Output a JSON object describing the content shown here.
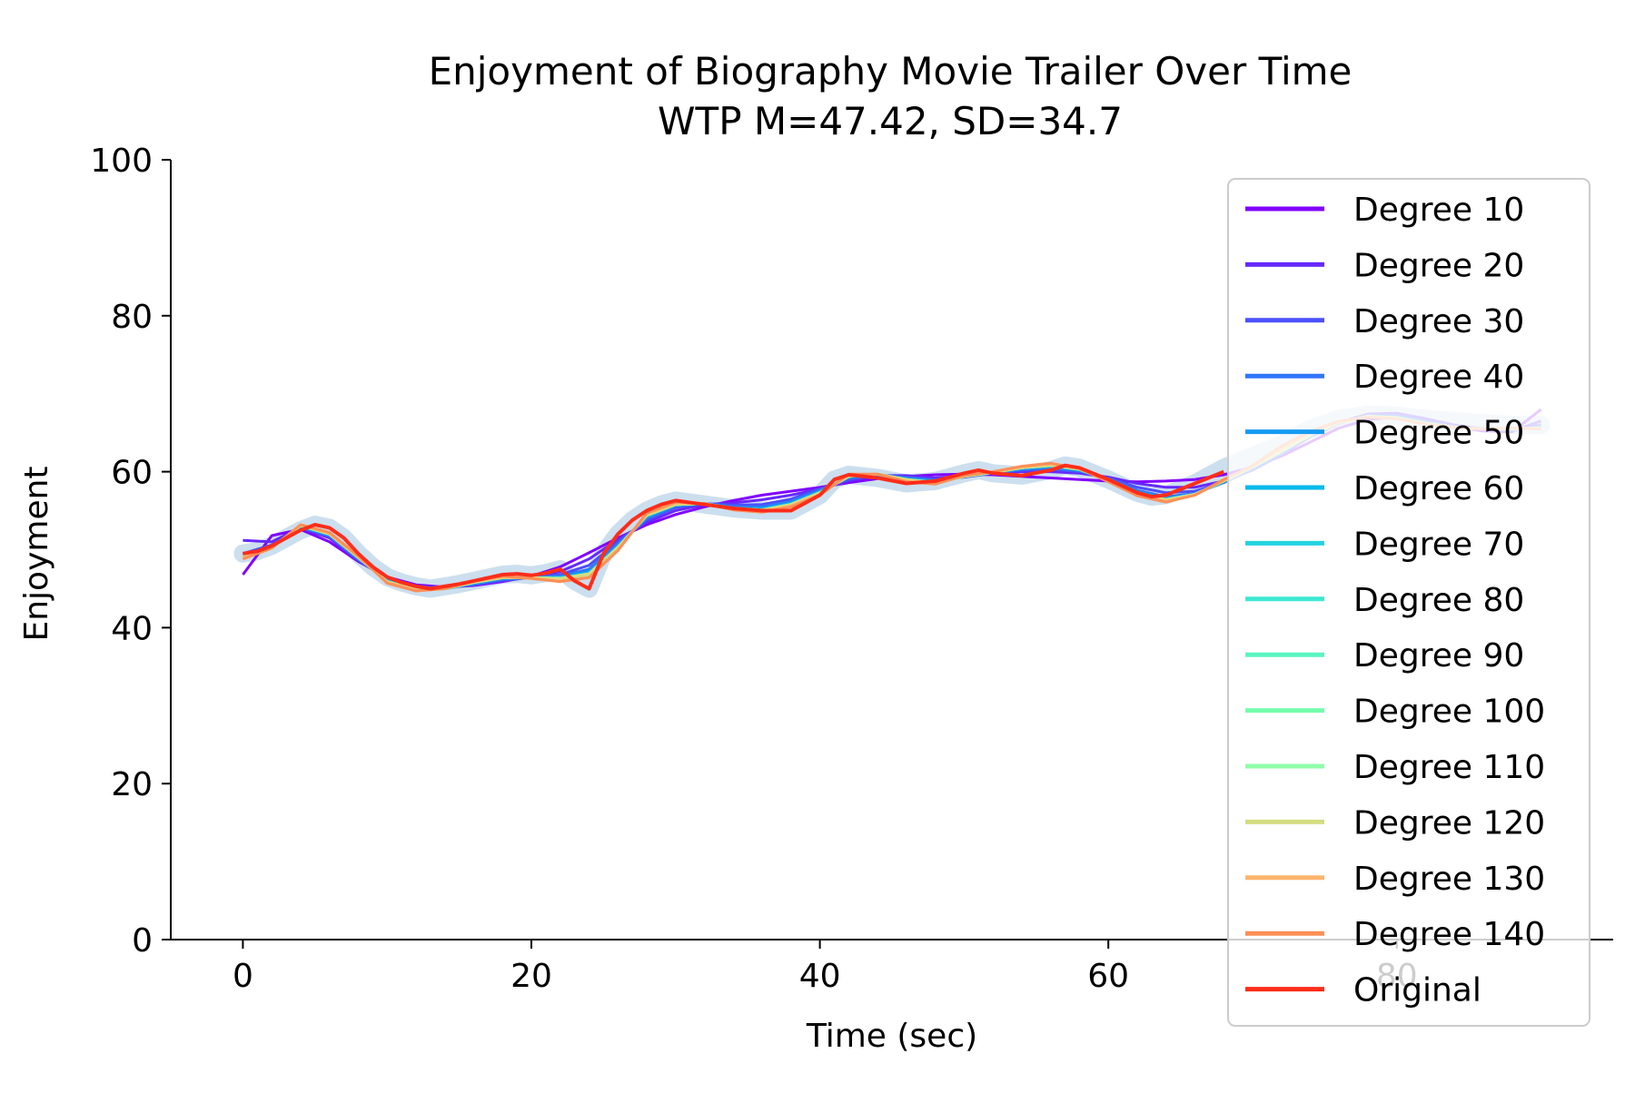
{
  "chart_data": {
    "type": "line",
    "title": "Enjoyment of Biography Movie Trailer Over Time",
    "subtitle": "WTP M=47.42, SD=34.7",
    "xlabel": "Time (sec)",
    "ylabel": "Enjoyment",
    "xlim": [
      -5,
      95
    ],
    "ylim": [
      0,
      100
    ],
    "xticks": [
      0,
      20,
      40,
      60,
      80
    ],
    "yticks": [
      0,
      20,
      40,
      60,
      80,
      100
    ],
    "grid": false,
    "legend_position": "right",
    "band": {
      "color": "#c6dbec",
      "x": [
        0,
        1,
        2,
        3,
        4,
        5,
        6,
        7,
        8,
        9,
        10,
        11,
        12,
        13,
        14,
        15,
        16,
        17,
        18,
        19,
        20,
        21,
        22,
        23,
        24,
        25,
        26,
        27,
        28,
        29,
        30,
        32,
        34,
        36,
        38,
        40,
        41,
        42,
        44,
        46,
        48,
        50,
        51,
        52,
        54,
        56,
        57,
        58,
        60,
        62,
        63,
        64,
        66,
        68,
        70,
        72,
        74,
        76,
        78,
        80,
        82,
        84,
        86,
        88,
        90
      ],
      "y": [
        49.5,
        49.8,
        50.5,
        51.5,
        52.5,
        53.2,
        52.8,
        51.5,
        49.5,
        47.8,
        46.5,
        45.8,
        45.3,
        45.0,
        45.3,
        45.6,
        46.0,
        46.4,
        46.8,
        46.9,
        46.7,
        47.0,
        47.5,
        46.0,
        45.0,
        49.5,
        52.0,
        53.8,
        55.0,
        55.8,
        56.3,
        55.8,
        55.3,
        55.0,
        55.0,
        57.0,
        59.0,
        59.6,
        59.2,
        58.5,
        58.8,
        59.8,
        60.2,
        59.8,
        59.5,
        60.2,
        60.8,
        60.5,
        59.0,
        57.3,
        56.8,
        57.0,
        58.5,
        60.5,
        62.0,
        63.5,
        65.5,
        66.8,
        67.3,
        67.2,
        66.8,
        66.5,
        66.2,
        66.0,
        66.0
      ]
    },
    "x": [
      0,
      2,
      4,
      6,
      8,
      10,
      12,
      14,
      16,
      18,
      20,
      22,
      24,
      26,
      28,
      30,
      32,
      34,
      36,
      38,
      40,
      42,
      44,
      46,
      48,
      50,
      52,
      54,
      56,
      58,
      60,
      62,
      64,
      66,
      68,
      70,
      72,
      74,
      76,
      78,
      80,
      82,
      84,
      86,
      88,
      90
    ],
    "series": [
      {
        "name": "Degree 10",
        "color": "#8000ff",
        "values": [
          46.8,
          51.8,
          52.6,
          51.0,
          48.5,
          46.5,
          45.5,
          45.2,
          45.4,
          45.9,
          46.6,
          47.8,
          49.6,
          51.5,
          53.2,
          54.5,
          55.5,
          56.3,
          57.0,
          57.5,
          58.0,
          58.6,
          59.1,
          59.4,
          59.6,
          59.7,
          59.6,
          59.4,
          59.2,
          59.0,
          58.8,
          58.7,
          58.8,
          59.0,
          59.6,
          60.6,
          62.0,
          63.8,
          65.6,
          66.7,
          67.0,
          66.5,
          65.8,
          65.2,
          65.1,
          68.0
        ]
      },
      {
        "name": "Degree 20",
        "color": "#6629fe",
        "values": [
          51.2,
          51.0,
          52.8,
          51.5,
          48.6,
          46.3,
          45.3,
          45.2,
          45.5,
          46.0,
          46.5,
          47.2,
          48.8,
          51.3,
          53.5,
          55.0,
          55.8,
          56.0,
          56.4,
          57.0,
          57.8,
          58.8,
          59.5,
          59.5,
          59.2,
          59.4,
          59.8,
          60.0,
          60.0,
          59.8,
          59.3,
          58.5,
          58.0,
          58.0,
          58.8,
          60.2,
          62.2,
          64.5,
          66.3,
          67.4,
          67.5,
          66.8,
          66.0,
          65.5,
          65.2,
          66.5
        ]
      },
      {
        "name": "Degree 30",
        "color": "#4c50fc",
        "values": [
          49.5,
          50.6,
          52.8,
          51.7,
          48.7,
          46.2,
          45.2,
          45.1,
          45.5,
          46.1,
          46.4,
          46.8,
          48.0,
          51.0,
          53.8,
          55.4,
          55.9,
          55.7,
          55.8,
          56.5,
          57.8,
          59.0,
          59.6,
          59.3,
          59.0,
          59.3,
          59.8,
          60.2,
          60.3,
          60.0,
          59.2,
          58.0,
          57.3,
          57.5,
          58.6,
          60.3,
          62.3,
          64.5,
          66.2,
          67.2,
          67.2,
          66.5,
          65.8,
          65.5,
          65.3,
          66.0
        ]
      },
      {
        "name": "Degree 40",
        "color": "#3176f8",
        "values": [
          49.3,
          50.4,
          52.9,
          51.8,
          48.8,
          46.1,
          45.1,
          45.0,
          45.6,
          46.2,
          46.4,
          46.6,
          47.5,
          50.7,
          54.0,
          55.6,
          55.9,
          55.5,
          55.5,
          56.2,
          57.6,
          59.2,
          59.6,
          59.2,
          58.9,
          59.4,
          59.8,
          60.3,
          60.5,
          60.1,
          59.1,
          57.6,
          56.8,
          57.2,
          58.6,
          60.4,
          62.4,
          64.6,
          66.3,
          67.2,
          67.1,
          66.4,
          65.8,
          65.5,
          65.4,
          65.8
        ]
      },
      {
        "name": "Degree 50",
        "color": "#169bf2",
        "values": [
          49.2,
          50.3,
          53.0,
          51.9,
          48.9,
          46.0,
          45.0,
          45.0,
          45.7,
          46.3,
          46.4,
          46.5,
          47.2,
          50.5,
          54.2,
          55.7,
          55.9,
          55.4,
          55.3,
          56.0,
          57.5,
          59.3,
          59.6,
          59.1,
          58.8,
          59.4,
          59.9,
          60.4,
          60.6,
          60.2,
          59.0,
          57.4,
          56.6,
          57.1,
          58.7,
          60.5,
          62.5,
          64.6,
          66.3,
          67.1,
          67.0,
          66.3,
          65.7,
          65.5,
          65.4,
          65.7
        ]
      },
      {
        "name": "Degree 60",
        "color": "#08b9ec",
        "values": [
          49.2,
          50.3,
          53.0,
          52.0,
          49.0,
          46.0,
          45.0,
          45.0,
          45.8,
          46.4,
          46.4,
          46.4,
          47.0,
          50.4,
          54.3,
          55.8,
          55.9,
          55.3,
          55.2,
          55.9,
          57.4,
          59.4,
          59.6,
          59.0,
          58.7,
          59.4,
          59.9,
          60.5,
          60.7,
          60.3,
          58.9,
          57.3,
          56.5,
          57.1,
          58.8,
          60.6,
          62.6,
          64.7,
          66.3,
          67.1,
          67.0,
          66.3,
          65.7,
          65.5,
          65.5,
          65.6
        ]
      },
      {
        "name": "Degree 70",
        "color": "#22d4e0",
        "values": [
          49.2,
          50.3,
          53.1,
          52.0,
          49.0,
          45.9,
          44.9,
          45.0,
          45.8,
          46.4,
          46.4,
          46.4,
          46.9,
          50.3,
          54.4,
          55.8,
          55.9,
          55.3,
          55.1,
          55.8,
          57.3,
          59.4,
          59.7,
          59.0,
          58.6,
          59.4,
          59.9,
          60.5,
          60.8,
          60.3,
          58.9,
          57.2,
          56.4,
          57.1,
          58.8,
          60.6,
          62.6,
          64.7,
          66.3,
          67.1,
          66.9,
          66.2,
          65.7,
          65.5,
          65.5,
          65.6
        ]
      },
      {
        "name": "Degree 80",
        "color": "#3ee8d1",
        "values": [
          49.2,
          50.3,
          53.1,
          52.0,
          49.0,
          45.9,
          44.9,
          45.0,
          45.8,
          46.4,
          46.4,
          46.3,
          46.9,
          50.3,
          54.4,
          55.8,
          55.9,
          55.3,
          55.1,
          55.8,
          57.3,
          59.4,
          59.7,
          59.0,
          58.6,
          59.4,
          59.9,
          60.5,
          60.8,
          60.3,
          58.9,
          57.2,
          56.4,
          57.1,
          58.8,
          60.6,
          62.6,
          64.7,
          66.3,
          67.1,
          66.9,
          66.2,
          65.7,
          65.5,
          65.5,
          65.6
        ]
      },
      {
        "name": "Degree 90",
        "color": "#59f5c0",
        "values": [
          49.2,
          50.3,
          53.1,
          52.0,
          49.0,
          45.9,
          44.9,
          45.0,
          45.8,
          46.4,
          46.4,
          46.3,
          46.9,
          50.3,
          54.4,
          55.8,
          55.9,
          55.3,
          55.1,
          55.8,
          57.3,
          59.4,
          59.7,
          59.0,
          58.6,
          59.4,
          59.9,
          60.5,
          60.8,
          60.3,
          58.9,
          57.2,
          56.4,
          57.1,
          58.8,
          60.6,
          62.6,
          64.7,
          66.3,
          67.1,
          66.9,
          66.2,
          65.7,
          65.5,
          65.5,
          65.6
        ]
      },
      {
        "name": "Degree 100",
        "color": "#74feab",
        "values": [
          49.2,
          50.3,
          53.1,
          52.0,
          49.0,
          45.9,
          44.9,
          45.0,
          45.8,
          46.4,
          46.4,
          46.3,
          46.9,
          50.3,
          54.4,
          55.8,
          55.9,
          55.3,
          55.1,
          55.8,
          57.3,
          59.4,
          59.7,
          59.0,
          58.6,
          59.4,
          59.9,
          60.5,
          60.8,
          60.3,
          58.9,
          57.2,
          56.4,
          57.1,
          58.8,
          60.6,
          62.6,
          64.7,
          66.3,
          67.1,
          66.9,
          66.2,
          65.7,
          65.5,
          65.5,
          65.6
        ]
      },
      {
        "name": "Degree 110",
        "color": "#90feaa",
        "values": [
          49.2,
          50.3,
          53.1,
          52.0,
          49.0,
          45.9,
          44.9,
          45.0,
          45.8,
          46.4,
          46.4,
          46.3,
          46.9,
          50.3,
          54.4,
          55.8,
          55.9,
          55.3,
          55.1,
          55.8,
          57.3,
          59.4,
          59.7,
          59.0,
          58.6,
          59.4,
          59.9,
          60.5,
          60.8,
          60.3,
          58.9,
          57.2,
          56.4,
          57.1,
          58.8,
          60.6,
          62.6,
          64.7,
          66.3,
          67.1,
          66.9,
          66.2,
          65.7,
          65.5,
          65.5,
          65.6
        ]
      },
      {
        "name": "Degree 120",
        "color": "#d4dd80",
        "values": [
          49.2,
          50.3,
          53.1,
          52.0,
          49.0,
          45.9,
          44.9,
          45.0,
          45.8,
          46.4,
          46.4,
          46.3,
          46.9,
          50.3,
          54.4,
          55.8,
          55.9,
          55.3,
          55.1,
          55.8,
          57.3,
          59.4,
          59.7,
          59.0,
          58.6,
          59.4,
          59.9,
          60.5,
          60.8,
          60.3,
          58.9,
          57.2,
          56.4,
          57.1,
          58.8,
          60.6,
          62.6,
          64.7,
          66.3,
          67.1,
          66.9,
          66.2,
          65.7,
          65.5,
          65.5,
          65.6
        ]
      },
      {
        "name": "Degree 130",
        "color": "#feb46e",
        "values": [
          49.0,
          50.2,
          53.2,
          52.1,
          49.1,
          45.8,
          44.8,
          45.0,
          45.9,
          46.5,
          46.3,
          46.0,
          46.5,
          50.0,
          54.6,
          56.0,
          55.9,
          55.2,
          54.9,
          55.6,
          57.1,
          59.6,
          59.7,
          58.8,
          58.5,
          59.5,
          60.0,
          60.6,
          61.0,
          60.4,
          58.8,
          57.0,
          56.2,
          57.0,
          58.9,
          60.7,
          63.0,
          65.0,
          66.4,
          67.0,
          66.8,
          66.1,
          65.7,
          65.5,
          65.6,
          65.5
        ]
      },
      {
        "name": "Degree 140",
        "color": "#fe8f56",
        "values": [
          48.8,
          50.2,
          53.2,
          52.2,
          49.2,
          45.7,
          44.7,
          45.0,
          46.0,
          46.6,
          46.3,
          45.9,
          46.4,
          49.9,
          54.7,
          56.1,
          55.9,
          55.1,
          54.8,
          55.5,
          57.0,
          59.7,
          59.7,
          58.7,
          58.4,
          59.5,
          60.0,
          60.7,
          61.1,
          60.4,
          58.7,
          56.9,
          56.1,
          57.0,
          59.0,
          60.8,
          63.3,
          65.2,
          66.5,
          67.0,
          66.8,
          66.1,
          65.7,
          65.5,
          65.6,
          65.5
        ]
      },
      {
        "name": "Original",
        "color": "#ff2d1a",
        "x": [
          0,
          1,
          2,
          3,
          4,
          5,
          6,
          7,
          8,
          9,
          10,
          11,
          12,
          13,
          14,
          15,
          16,
          17,
          18,
          19,
          20,
          21,
          22,
          23,
          24,
          25,
          26,
          27,
          28,
          29,
          30,
          32,
          34,
          36,
          38,
          40,
          41,
          42,
          44,
          46,
          48,
          50,
          51,
          52,
          54,
          56,
          57,
          58,
          60,
          62,
          63,
          64,
          66,
          68
        ],
        "values": [
          49.5,
          49.8,
          50.5,
          51.5,
          52.5,
          53.2,
          52.8,
          51.5,
          49.5,
          47.8,
          46.5,
          45.8,
          45.3,
          45.0,
          45.3,
          45.6,
          46.0,
          46.4,
          46.8,
          46.9,
          46.7,
          47.0,
          47.5,
          46.0,
          45.0,
          49.5,
          52.0,
          53.8,
          55.0,
          55.8,
          56.3,
          55.8,
          55.3,
          55.0,
          55.0,
          57.0,
          59.0,
          59.6,
          59.2,
          58.5,
          58.8,
          59.8,
          60.2,
          59.8,
          59.5,
          60.2,
          60.8,
          60.5,
          59.0,
          57.3,
          56.8,
          57.0,
          58.5,
          60.0
        ]
      }
    ]
  }
}
